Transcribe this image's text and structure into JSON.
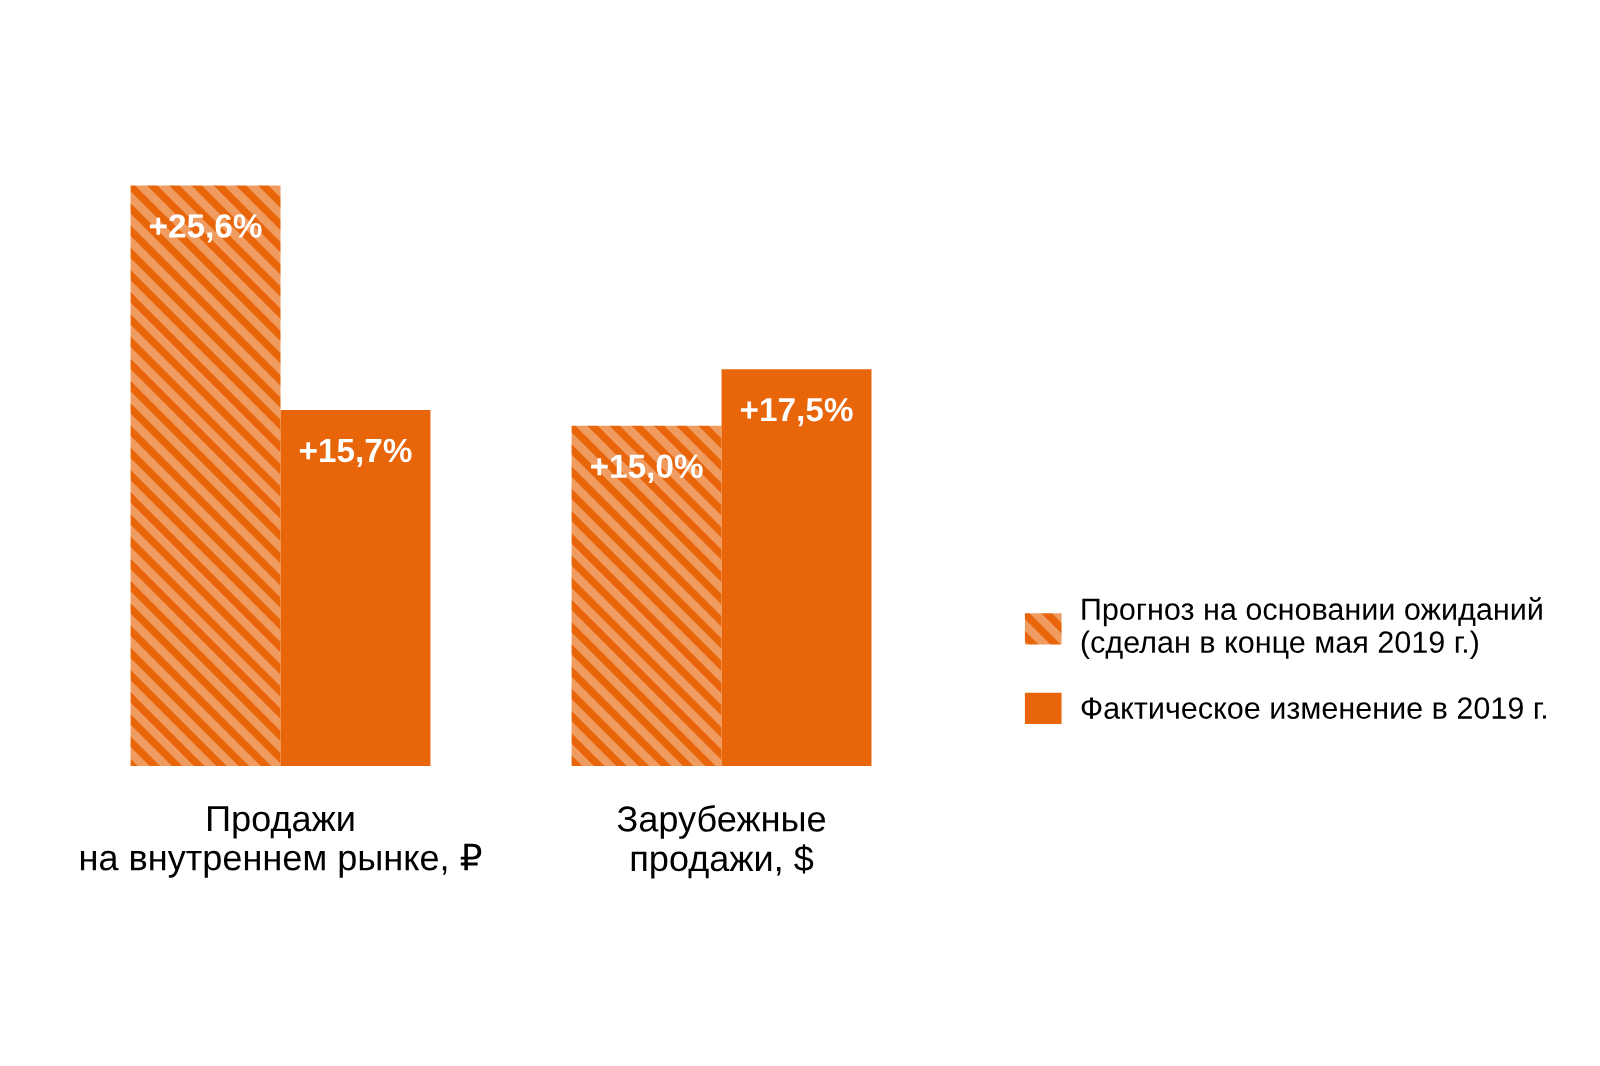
{
  "chart_data": {
    "type": "bar",
    "categories": [
      "Продажи\nна внутреннем рынке, ₽",
      "Зарубежные\nпродажи, $"
    ],
    "series": [
      {
        "name": "Прогноз на основании ожиданий\n(сделан в конце мая 2019 г.)",
        "color": "#e8650a",
        "values": [
          25.6,
          15.0
        ],
        "value_labels": [
          "+25,6%",
          "+15,0%"
        ]
      },
      {
        "name": "Фактическое изменение в 2019 г.",
        "color": "#e8650a",
        "values": [
          15.7,
          17.5
        ],
        "value_labels": [
          "+15,7%",
          "+17,5%"
        ]
      }
    ],
    "legend": "right",
    "grid": false,
    "tick_labels": "x"
  }
}
